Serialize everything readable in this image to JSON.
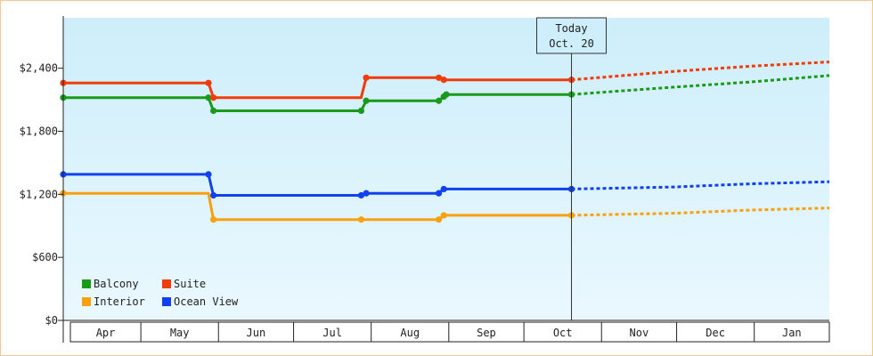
{
  "chart_data": {
    "type": "line",
    "ylim": [
      0,
      2880
    ],
    "yticks": [
      0,
      600,
      1200,
      1800,
      2400
    ],
    "ytick_labels": [
      "$0",
      "$600",
      "$1,200",
      "$1,800",
      "$2,400"
    ],
    "x_range": [
      "2024-03-31",
      "2025-01-31"
    ],
    "month_labels": [
      "Apr",
      "May",
      "Jun",
      "Jul",
      "Aug",
      "Sep",
      "Oct",
      "Nov",
      "Dec",
      "Jan"
    ],
    "today": {
      "label_line1": "Today",
      "label_line2": "Oct. 20",
      "date": "2024-10-20"
    },
    "background": {
      "top": "#cdeefa",
      "bottom": "#eaf8fe"
    },
    "series": [
      {
        "name": "Balcony",
        "color": "#1a9a1a",
        "points": [
          [
            "2024-03-31",
            2120
          ],
          [
            "2024-05-28",
            2120
          ],
          [
            "2024-05-30",
            1995
          ],
          [
            "2024-07-28",
            1995
          ],
          [
            "2024-07-30",
            2090
          ],
          [
            "2024-08-28",
            2090
          ],
          [
            "2024-08-30",
            2130
          ],
          [
            "2024-08-31",
            2150
          ],
          [
            "2024-10-20",
            2150
          ]
        ],
        "forecast": [
          [
            "2024-10-20",
            2150
          ],
          [
            "2024-11-30",
            2220
          ],
          [
            "2024-12-31",
            2270
          ],
          [
            "2025-01-31",
            2330
          ]
        ]
      },
      {
        "name": "Suite",
        "color": "#f03c0a",
        "points": [
          [
            "2024-03-31",
            2260
          ],
          [
            "2024-05-28",
            2260
          ],
          [
            "2024-05-30",
            2120
          ],
          [
            "2024-07-28",
            2120
          ],
          [
            "2024-07-30",
            2310
          ],
          [
            "2024-08-28",
            2310
          ],
          [
            "2024-08-30",
            2290
          ],
          [
            "2024-10-20",
            2290
          ]
        ],
        "forecast": [
          [
            "2024-10-20",
            2290
          ],
          [
            "2024-11-30",
            2370
          ],
          [
            "2024-12-31",
            2420
          ],
          [
            "2025-01-31",
            2460
          ]
        ]
      },
      {
        "name": "Interior",
        "color": "#f8a010",
        "points": [
          [
            "2024-03-31",
            1210
          ],
          [
            "2024-05-28",
            1210
          ],
          [
            "2024-05-30",
            960
          ],
          [
            "2024-07-28",
            960
          ],
          [
            "2024-08-28",
            960
          ],
          [
            "2024-08-30",
            1000
          ],
          [
            "2024-10-20",
            1000
          ]
        ],
        "forecast": [
          [
            "2024-10-20",
            1000
          ],
          [
            "2024-11-30",
            1020
          ],
          [
            "2024-12-31",
            1050
          ],
          [
            "2025-01-31",
            1070
          ]
        ]
      },
      {
        "name": "Ocean View",
        "color": "#1040f0",
        "points": [
          [
            "2024-03-31",
            1390
          ],
          [
            "2024-05-28",
            1390
          ],
          [
            "2024-05-30",
            1190
          ],
          [
            "2024-07-28",
            1190
          ],
          [
            "2024-07-30",
            1210
          ],
          [
            "2024-08-28",
            1210
          ],
          [
            "2024-08-30",
            1250
          ],
          [
            "2024-10-20",
            1250
          ]
        ],
        "forecast": [
          [
            "2024-10-20",
            1250
          ],
          [
            "2024-11-30",
            1270
          ],
          [
            "2024-12-31",
            1300
          ],
          [
            "2025-01-31",
            1320
          ]
        ]
      }
    ],
    "markers": [
      {
        "series": "Balcony",
        "points": [
          [
            "2024-03-31",
            2120
          ],
          [
            "2024-05-28",
            2120
          ],
          [
            "2024-05-30",
            1995
          ],
          [
            "2024-07-28",
            1995
          ],
          [
            "2024-07-30",
            2090
          ],
          [
            "2024-08-28",
            2090
          ],
          [
            "2024-08-30",
            2130
          ],
          [
            "2024-08-31",
            2150
          ],
          [
            "2024-10-20",
            2150
          ]
        ]
      },
      {
        "series": "Suite",
        "points": [
          [
            "2024-03-31",
            2260
          ],
          [
            "2024-05-28",
            2260
          ],
          [
            "2024-05-30",
            2120
          ],
          [
            "2024-07-30",
            2310
          ],
          [
            "2024-08-28",
            2310
          ],
          [
            "2024-08-30",
            2290
          ],
          [
            "2024-10-20",
            2290
          ]
        ]
      },
      {
        "series": "Interior",
        "points": [
          [
            "2024-03-31",
            1210
          ],
          [
            "2024-05-30",
            960
          ],
          [
            "2024-07-28",
            960
          ],
          [
            "2024-08-28",
            960
          ],
          [
            "2024-08-30",
            1000
          ],
          [
            "2024-10-20",
            1000
          ]
        ]
      },
      {
        "series": "Ocean View",
        "points": [
          [
            "2024-03-31",
            1390
          ],
          [
            "2024-05-28",
            1390
          ],
          [
            "2024-05-30",
            1190
          ],
          [
            "2024-07-28",
            1190
          ],
          [
            "2024-07-30",
            1210
          ],
          [
            "2024-08-28",
            1210
          ],
          [
            "2024-08-30",
            1250
          ],
          [
            "2024-10-20",
            1250
          ]
        ]
      }
    ],
    "legend": [
      {
        "label": "Balcony",
        "color": "#1a9a1a"
      },
      {
        "label": "Suite",
        "color": "#f03c0a"
      },
      {
        "label": "Interior",
        "color": "#f8a010"
      },
      {
        "label": "Ocean View",
        "color": "#1040f0"
      }
    ],
    "legend_position": "bottom-left"
  }
}
